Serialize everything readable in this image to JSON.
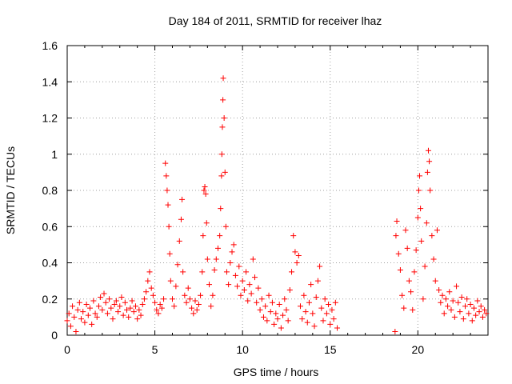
{
  "chart_data": {
    "type": "scatter",
    "title": "Day 184 of 2011, SRMTID for receiver lhaz",
    "xlabel": "GPS time / hours",
    "ylabel": "SRMTID / TECUs",
    "xlim": [
      0,
      24
    ],
    "ylim": [
      0,
      1.6
    ],
    "xticks": [
      0,
      5,
      10,
      15,
      20
    ],
    "xtick_labels": [
      "0",
      "5",
      "10",
      "15",
      "20"
    ],
    "yticks": [
      0,
      0.2,
      0.4,
      0.6,
      0.8,
      1.0,
      1.2,
      1.4,
      1.6
    ],
    "ytick_labels": [
      "0",
      "0.2",
      "0.4",
      "0.6",
      "0.8",
      "1",
      "1.2",
      "1.4",
      "1.6"
    ],
    "grid": true,
    "marker": "+",
    "color": "#ff0000",
    "series": [
      {
        "name": "SRMTID",
        "points": [
          [
            0.0,
            0.08
          ],
          [
            0.1,
            0.12
          ],
          [
            0.2,
            0.05
          ],
          [
            0.3,
            0.16
          ],
          [
            0.4,
            0.1
          ],
          [
            0.5,
            0.02
          ],
          [
            0.6,
            0.14
          ],
          [
            0.7,
            0.18
          ],
          [
            0.8,
            0.09
          ],
          [
            0.9,
            0.13
          ],
          [
            1.0,
            0.07
          ],
          [
            1.1,
            0.17
          ],
          [
            1.2,
            0.11
          ],
          [
            1.3,
            0.15
          ],
          [
            1.4,
            0.06
          ],
          [
            1.5,
            0.19
          ],
          [
            1.6,
            0.12
          ],
          [
            1.7,
            0.1
          ],
          [
            1.8,
            0.16
          ],
          [
            1.9,
            0.21
          ],
          [
            2.0,
            0.14
          ],
          [
            2.1,
            0.23
          ],
          [
            2.2,
            0.18
          ],
          [
            2.3,
            0.12
          ],
          [
            2.4,
            0.2
          ],
          [
            2.5,
            0.15
          ],
          [
            2.6,
            0.09
          ],
          [
            2.7,
            0.17
          ],
          [
            2.8,
            0.19
          ],
          [
            2.9,
            0.13
          ],
          [
            3.0,
            0.16
          ],
          [
            3.1,
            0.21
          ],
          [
            3.2,
            0.11
          ],
          [
            3.3,
            0.18
          ],
          [
            3.4,
            0.14
          ],
          [
            3.5,
            0.1
          ],
          [
            3.6,
            0.15
          ],
          [
            3.7,
            0.19
          ],
          [
            3.8,
            0.13
          ],
          [
            3.9,
            0.16
          ],
          [
            4.0,
            0.09
          ],
          [
            4.1,
            0.14
          ],
          [
            4.2,
            0.11
          ],
          [
            4.3,
            0.17
          ],
          [
            4.4,
            0.2
          ],
          [
            4.5,
            0.24
          ],
          [
            4.6,
            0.3
          ],
          [
            4.7,
            0.35
          ],
          [
            4.8,
            0.26
          ],
          [
            4.9,
            0.22
          ],
          [
            5.0,
            0.18
          ],
          [
            5.1,
            0.14
          ],
          [
            5.2,
            0.12
          ],
          [
            5.3,
            0.17
          ],
          [
            5.4,
            0.15
          ],
          [
            5.5,
            0.2
          ],
          [
            5.6,
            0.95
          ],
          [
            5.65,
            0.88
          ],
          [
            5.7,
            0.8
          ],
          [
            5.75,
            0.72
          ],
          [
            5.8,
            0.6
          ],
          [
            5.85,
            0.45
          ],
          [
            5.9,
            0.3
          ],
          [
            6.0,
            0.2
          ],
          [
            6.1,
            0.16
          ],
          [
            6.2,
            0.27
          ],
          [
            6.3,
            0.39
          ],
          [
            6.4,
            0.52
          ],
          [
            6.5,
            0.64
          ],
          [
            6.55,
            0.75
          ],
          [
            6.6,
            0.35
          ],
          [
            6.7,
            0.22
          ],
          [
            6.8,
            0.18
          ],
          [
            6.9,
            0.26
          ],
          [
            7.0,
            0.2
          ],
          [
            7.1,
            0.15
          ],
          [
            7.2,
            0.12
          ],
          [
            7.3,
            0.19
          ],
          [
            7.4,
            0.14
          ],
          [
            7.5,
            0.17
          ],
          [
            7.6,
            0.22
          ],
          [
            7.7,
            0.35
          ],
          [
            7.75,
            0.55
          ],
          [
            7.8,
            0.8
          ],
          [
            7.85,
            0.82
          ],
          [
            7.9,
            0.78
          ],
          [
            7.95,
            0.62
          ],
          [
            8.0,
            0.42
          ],
          [
            8.1,
            0.28
          ],
          [
            8.2,
            0.16
          ],
          [
            8.3,
            0.22
          ],
          [
            8.4,
            0.36
          ],
          [
            8.5,
            0.42
          ],
          [
            8.6,
            0.48
          ],
          [
            8.7,
            0.55
          ],
          [
            8.75,
            0.7
          ],
          [
            8.8,
            0.88
          ],
          [
            8.82,
            1.0
          ],
          [
            8.85,
            1.15
          ],
          [
            8.88,
            1.3
          ],
          [
            8.9,
            1.42
          ],
          [
            8.95,
            1.2
          ],
          [
            9.0,
            0.9
          ],
          [
            9.05,
            0.6
          ],
          [
            9.1,
            0.35
          ],
          [
            9.2,
            0.28
          ],
          [
            9.3,
            0.4
          ],
          [
            9.4,
            0.46
          ],
          [
            9.5,
            0.5
          ],
          [
            9.6,
            0.33
          ],
          [
            9.7,
            0.27
          ],
          [
            9.8,
            0.38
          ],
          [
            9.9,
            0.22
          ],
          [
            10.0,
            0.3
          ],
          [
            10.1,
            0.25
          ],
          [
            10.2,
            0.35
          ],
          [
            10.3,
            0.19
          ],
          [
            10.4,
            0.28
          ],
          [
            10.5,
            0.23
          ],
          [
            10.6,
            0.42
          ],
          [
            10.7,
            0.32
          ],
          [
            10.8,
            0.18
          ],
          [
            10.9,
            0.26
          ],
          [
            11.0,
            0.14
          ],
          [
            11.1,
            0.2
          ],
          [
            11.2,
            0.1
          ],
          [
            11.3,
            0.16
          ],
          [
            11.4,
            0.08
          ],
          [
            11.5,
            0.22
          ],
          [
            11.6,
            0.13
          ],
          [
            11.7,
            0.18
          ],
          [
            11.8,
            0.06
          ],
          [
            11.9,
            0.12
          ],
          [
            12.0,
            0.09
          ],
          [
            12.1,
            0.17
          ],
          [
            12.2,
            0.04
          ],
          [
            12.3,
            0.11
          ],
          [
            12.4,
            0.2
          ],
          [
            12.5,
            0.14
          ],
          [
            12.6,
            0.08
          ],
          [
            12.7,
            0.25
          ],
          [
            12.8,
            0.35
          ],
          [
            12.9,
            0.55
          ],
          [
            13.0,
            0.46
          ],
          [
            13.1,
            0.4
          ],
          [
            13.2,
            0.44
          ],
          [
            13.3,
            0.16
          ],
          [
            13.4,
            0.09
          ],
          [
            13.5,
            0.22
          ],
          [
            13.6,
            0.13
          ],
          [
            13.7,
            0.07
          ],
          [
            13.8,
            0.18
          ],
          [
            13.9,
            0.28
          ],
          [
            14.0,
            0.12
          ],
          [
            14.1,
            0.05
          ],
          [
            14.2,
            0.21
          ],
          [
            14.3,
            0.3
          ],
          [
            14.4,
            0.38
          ],
          [
            14.5,
            0.15
          ],
          [
            14.6,
            0.08
          ],
          [
            14.7,
            0.2
          ],
          [
            14.8,
            0.12
          ],
          [
            14.9,
            0.17
          ],
          [
            15.0,
            0.06
          ],
          [
            15.1,
            0.14
          ],
          [
            15.2,
            0.09
          ],
          [
            15.3,
            0.18
          ],
          [
            15.4,
            0.04
          ],
          [
            18.7,
            0.02
          ],
          [
            18.75,
            0.55
          ],
          [
            18.8,
            0.63
          ],
          [
            18.9,
            0.45
          ],
          [
            19.0,
            0.36
          ],
          [
            19.1,
            0.22
          ],
          [
            19.2,
            0.15
          ],
          [
            19.3,
            0.58
          ],
          [
            19.4,
            0.48
          ],
          [
            19.5,
            0.3
          ],
          [
            19.6,
            0.24
          ],
          [
            19.7,
            0.14
          ],
          [
            19.8,
            0.35
          ],
          [
            19.9,
            0.47
          ],
          [
            20.0,
            0.65
          ],
          [
            20.05,
            0.8
          ],
          [
            20.1,
            0.88
          ],
          [
            20.15,
            0.7
          ],
          [
            20.2,
            0.52
          ],
          [
            20.3,
            0.2
          ],
          [
            20.4,
            0.38
          ],
          [
            20.5,
            0.62
          ],
          [
            20.55,
            0.9
          ],
          [
            20.6,
            1.02
          ],
          [
            20.65,
            0.96
          ],
          [
            20.7,
            0.8
          ],
          [
            20.8,
            0.55
          ],
          [
            20.9,
            0.42
          ],
          [
            21.0,
            0.3
          ],
          [
            21.1,
            0.58
          ],
          [
            21.2,
            0.25
          ],
          [
            21.3,
            0.18
          ],
          [
            21.4,
            0.22
          ],
          [
            21.5,
            0.12
          ],
          [
            21.6,
            0.2
          ],
          [
            21.7,
            0.16
          ],
          [
            21.8,
            0.24
          ],
          [
            21.9,
            0.14
          ],
          [
            22.0,
            0.19
          ],
          [
            22.1,
            0.1
          ],
          [
            22.2,
            0.27
          ],
          [
            22.3,
            0.18
          ],
          [
            22.4,
            0.13
          ],
          [
            22.5,
            0.21
          ],
          [
            22.6,
            0.09
          ],
          [
            22.7,
            0.16
          ],
          [
            22.8,
            0.2
          ],
          [
            22.9,
            0.12
          ],
          [
            23.0,
            0.17
          ],
          [
            23.1,
            0.08
          ],
          [
            23.2,
            0.15
          ],
          [
            23.3,
            0.11
          ],
          [
            23.4,
            0.19
          ],
          [
            23.5,
            0.13
          ],
          [
            23.6,
            0.16
          ],
          [
            23.7,
            0.1
          ],
          [
            23.8,
            0.14
          ],
          [
            23.9,
            0.12
          ]
        ]
      }
    ]
  }
}
